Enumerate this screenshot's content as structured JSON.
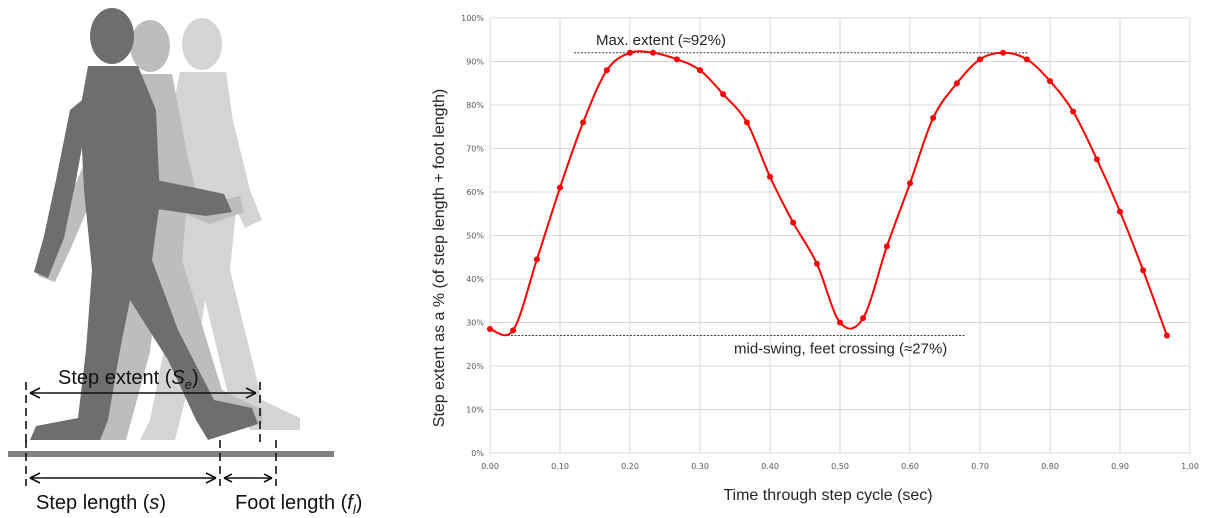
{
  "figure": {
    "step_extent_label": "Step extent (",
    "step_extent_symbol": "S",
    "step_extent_sub": "e",
    "step_extent_close": ")",
    "step_length_label": "Step length (",
    "step_length_symbol": "s",
    "step_length_close": ")",
    "foot_length_label": "Foot length (",
    "foot_length_symbol": "f",
    "foot_length_sub": "l",
    "foot_length_close": ")"
  },
  "chart_data": {
    "type": "line",
    "title": "",
    "xlabel": "Time through step cycle (sec)",
    "ylabel": "Step extent as a % (of step length + foot length)",
    "xlim": [
      0,
      1.0
    ],
    "ylim": [
      0,
      100
    ],
    "x_ticks": [
      "0.00",
      "0.10",
      "0.20",
      "0.30",
      "0.40",
      "0.50",
      "0.60",
      "0.70",
      "0.80",
      "0.90",
      "1.00"
    ],
    "y_ticks": [
      "0%",
      "10%",
      "20%",
      "30%",
      "40%",
      "50%",
      "60%",
      "70%",
      "80%",
      "90%",
      "100%"
    ],
    "grid": true,
    "legend": "none",
    "series": [
      {
        "color": "#ff0000",
        "x": [
          0.0,
          0.033,
          0.067,
          0.1,
          0.133,
          0.167,
          0.2,
          0.233,
          0.267,
          0.3,
          0.333,
          0.367,
          0.4,
          0.433,
          0.467,
          0.5,
          0.533,
          0.567,
          0.6,
          0.633,
          0.667,
          0.7,
          0.733,
          0.767,
          0.8,
          0.833,
          0.867,
          0.9,
          0.933,
          0.967
        ],
        "y": [
          28.5,
          28.2,
          44.5,
          61,
          76,
          88,
          92,
          92,
          90.5,
          88,
          82.5,
          76,
          63.5,
          53,
          43.5,
          30,
          31,
          47.5,
          62,
          77,
          85,
          90.5,
          92,
          90.5,
          85.5,
          78.5,
          67.5,
          55.5,
          42,
          27
        ]
      }
    ],
    "annotations": [
      {
        "text": "Max. extent (≈92%)",
        "value": 92,
        "x_from": 0.12,
        "x_to": 0.77
      },
      {
        "text": "mid-swing, feet crossing (≈27%)",
        "value": 27,
        "x_from": 0.02,
        "x_to": 0.68
      }
    ]
  }
}
